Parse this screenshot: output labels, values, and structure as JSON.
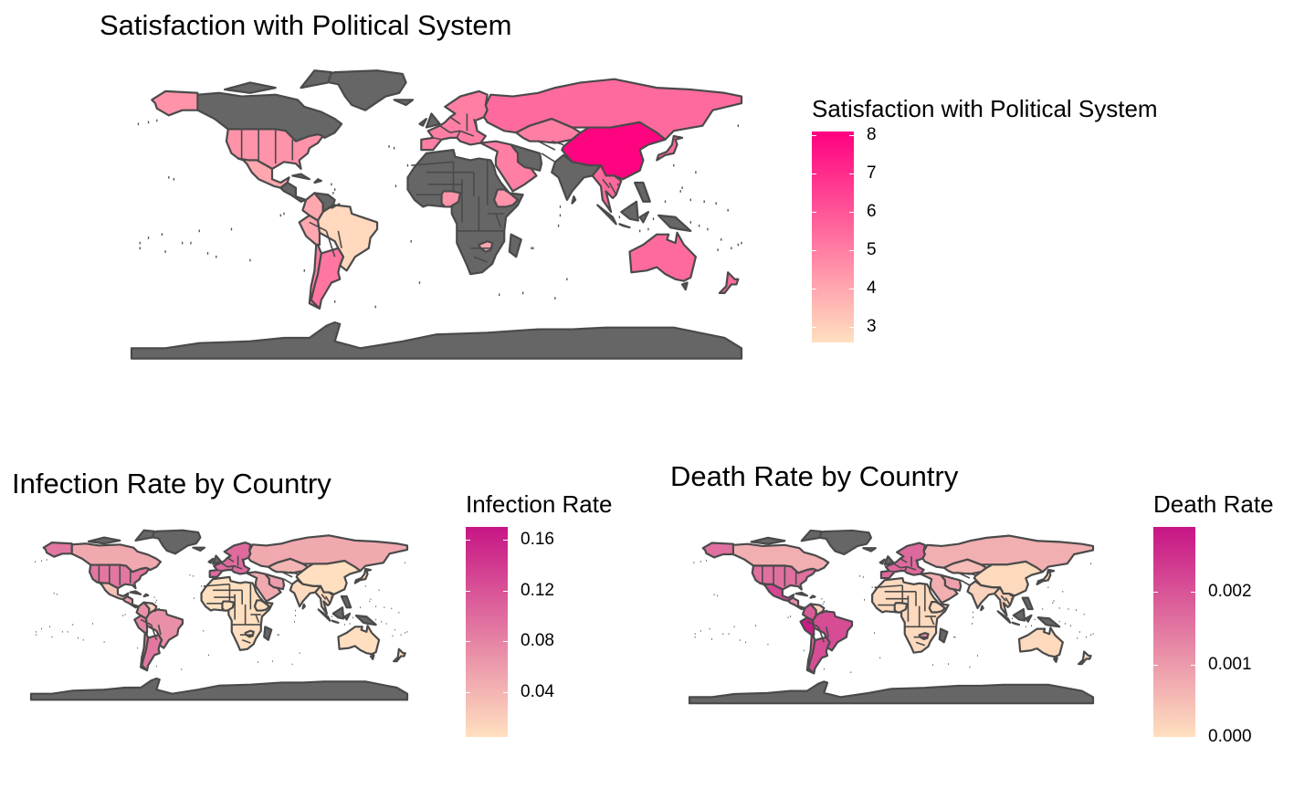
{
  "colors": {
    "background": "#ffffff",
    "missing": "#666666",
    "outline": "#4a4a4a"
  },
  "maps": [
    {
      "id": "satisfaction",
      "title": "Satisfaction with Political System",
      "legend_title": "Satisfaction with Political System",
      "scale": {
        "low_color": "#ffe0bf",
        "high_color": "#ff0080",
        "min": 2.6,
        "max": 8.1
      },
      "ticks": [
        {
          "value": 8,
          "label": "8"
        },
        {
          "value": 7,
          "label": "7"
        },
        {
          "value": 6,
          "label": "6"
        },
        {
          "value": 5,
          "label": "5"
        },
        {
          "value": 4,
          "label": "4"
        },
        {
          "value": 3,
          "label": "3"
        }
      ],
      "regions": [
        {
          "name": "Canada",
          "value": null
        },
        {
          "name": "Greenland",
          "value": null
        },
        {
          "name": "Alaska (USA)",
          "value": 4.5
        },
        {
          "name": "United States",
          "value": 4.5
        },
        {
          "name": "Mexico",
          "value": 4.0
        },
        {
          "name": "Central America",
          "value": null
        },
        {
          "name": "Colombia",
          "value": 4.0
        },
        {
          "name": "Venezuela",
          "value": null
        },
        {
          "name": "Peru",
          "value": 4.0
        },
        {
          "name": "Brazil",
          "value": 2.8
        },
        {
          "name": "Chile",
          "value": 5.0
        },
        {
          "name": "Argentina",
          "value": 5.2
        },
        {
          "name": "Western Europe",
          "value": 5.0
        },
        {
          "name": "Russia",
          "value": 5.5
        },
        {
          "name": "Kazakhstan",
          "value": 5.0
        },
        {
          "name": "China",
          "value": 8.0
        },
        {
          "name": "Middle East",
          "value": 5.0
        },
        {
          "name": "Iran",
          "value": null
        },
        {
          "name": "India",
          "value": null
        },
        {
          "name": "Southeast Asia",
          "value": 5.5
        },
        {
          "name": "Japan",
          "value": 5.5
        },
        {
          "name": "Africa",
          "value": null
        },
        {
          "name": "Nigeria",
          "value": 4.5
        },
        {
          "name": "Ethiopia",
          "value": 4.5
        },
        {
          "name": "Zimbabwe",
          "value": 4.0
        },
        {
          "name": "Australia",
          "value": 5.5
        },
        {
          "name": "New Zealand",
          "value": 5.5
        },
        {
          "name": "Antarctica",
          "value": null
        }
      ]
    },
    {
      "id": "infection",
      "title": "Infection Rate by Country",
      "legend_title": "Infection Rate",
      "scale": {
        "low_color": "#ffe0bf",
        "high_color": "#c71585",
        "min": 0.005,
        "max": 0.17
      },
      "ticks": [
        {
          "value": 0.16,
          "label": "0.16"
        },
        {
          "value": 0.12,
          "label": "0.12"
        },
        {
          "value": 0.08,
          "label": "0.08"
        },
        {
          "value": 0.04,
          "label": "0.04"
        }
      ],
      "regions": [
        {
          "name": "Canada",
          "value": 0.05
        },
        {
          "name": "Greenland",
          "value": null
        },
        {
          "name": "Alaska (USA)",
          "value": 0.09
        },
        {
          "name": "United States",
          "value": 0.09
        },
        {
          "name": "Mexico",
          "value": 0.03
        },
        {
          "name": "Central America",
          "value": 0.06
        },
        {
          "name": "Colombia",
          "value": 0.07
        },
        {
          "name": "Venezuela",
          "value": 0.02
        },
        {
          "name": "Peru",
          "value": 0.08
        },
        {
          "name": "Brazil",
          "value": 0.07
        },
        {
          "name": "Chile",
          "value": 0.08
        },
        {
          "name": "Argentina",
          "value": 0.09
        },
        {
          "name": "Western Europe",
          "value": 0.1
        },
        {
          "name": "Russia",
          "value": 0.05
        },
        {
          "name": "Kazakhstan",
          "value": 0.04
        },
        {
          "name": "China",
          "value": 0.006
        },
        {
          "name": "Middle East",
          "value": 0.05
        },
        {
          "name": "Iran",
          "value": 0.06
        },
        {
          "name": "India",
          "value": 0.01
        },
        {
          "name": "Southeast Asia",
          "value": 0.01
        },
        {
          "name": "Japan",
          "value": 0.01
        },
        {
          "name": "Africa",
          "value": 0.006
        },
        {
          "name": "Nigeria",
          "value": 0.006
        },
        {
          "name": "Ethiopia",
          "value": 0.006
        },
        {
          "name": "Zimbabwe",
          "value": 0.01
        },
        {
          "name": "Australia",
          "value": 0.006
        },
        {
          "name": "New Zealand",
          "value": 0.006
        },
        {
          "name": "Antarctica",
          "value": null
        }
      ]
    },
    {
      "id": "death",
      "title": "Death Rate by Country",
      "legend_title": "Death Rate",
      "scale": {
        "low_color": "#ffe0bf",
        "high_color": "#c71585",
        "min": 0,
        "max": 0.0029
      },
      "ticks": [
        {
          "value": 0.002,
          "label": "0.002"
        },
        {
          "value": 0.001,
          "label": "0.001"
        },
        {
          "value": 0,
          "label": "0.000"
        }
      ],
      "regions": [
        {
          "name": "Canada",
          "value": 0.0007
        },
        {
          "name": "Greenland",
          "value": null
        },
        {
          "name": "Alaska (USA)",
          "value": 0.0016
        },
        {
          "name": "United States",
          "value": 0.0016
        },
        {
          "name": "Mexico",
          "value": 0.0022
        },
        {
          "name": "Central America",
          "value": 0.0012
        },
        {
          "name": "Colombia",
          "value": 0.0019
        },
        {
          "name": "Venezuela",
          "value": 0.0002
        },
        {
          "name": "Peru",
          "value": 0.0028
        },
        {
          "name": "Brazil",
          "value": 0.0021
        },
        {
          "name": "Chile",
          "value": 0.0017
        },
        {
          "name": "Argentina",
          "value": 0.0021
        },
        {
          "name": "Western Europe",
          "value": 0.0017
        },
        {
          "name": "Russia",
          "value": 0.0007
        },
        {
          "name": "Kazakhstan",
          "value": 0.0005
        },
        {
          "name": "China",
          "value": 0.0001
        },
        {
          "name": "Middle East",
          "value": 0.0007
        },
        {
          "name": "Iran",
          "value": 0.0009
        },
        {
          "name": "India",
          "value": 0.0002
        },
        {
          "name": "Southeast Asia",
          "value": 0.0002
        },
        {
          "name": "Japan",
          "value": 0.0001
        },
        {
          "name": "Africa",
          "value": 0.0001
        },
        {
          "name": "Nigeria",
          "value": 0.0001
        },
        {
          "name": "Ethiopia",
          "value": 0.0001
        },
        {
          "name": "Zimbabwe",
          "value": 0.0012
        },
        {
          "name": "Australia",
          "value": 0.0001
        },
        {
          "name": "New Zealand",
          "value": 0.0001
        },
        {
          "name": "Antarctica",
          "value": null
        }
      ]
    }
  ]
}
